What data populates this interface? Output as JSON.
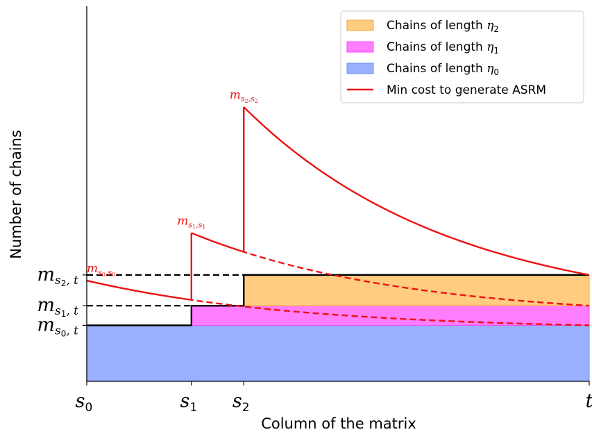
{
  "chart_data": {
    "type": "area",
    "title": "",
    "xlabel": "Column of the matrix",
    "ylabel": "Number of chains",
    "x_ticks": [
      {
        "id": "s0",
        "base": "s",
        "sub": "0",
        "x": 0
      },
      {
        "id": "s1",
        "base": "s",
        "sub": "1",
        "x": 1
      },
      {
        "id": "s2",
        "base": "s",
        "sub": "2",
        "x": 1.5
      },
      {
        "id": "t",
        "base": "t",
        "sub": "",
        "x": 4.8
      }
    ],
    "y_ticks": [
      {
        "id": "ms0t",
        "base": "m",
        "sub": "s",
        "subsub": "0",
        "tail": ", t",
        "y": 1.0
      },
      {
        "id": "ms1t",
        "base": "m",
        "sub": "s",
        "subsub": "1",
        "tail": ", t",
        "y": 1.35
      },
      {
        "id": "ms2t",
        "base": "m",
        "sub": "s",
        "subsub": "2",
        "tail": ", t",
        "y": 1.9
      }
    ],
    "xlim": [
      0,
      4.8
    ],
    "ylim": [
      0,
      6.7
    ],
    "areas": [
      {
        "name": "Chains of length η0",
        "label_text": "Chains of length ",
        "label_math": "η",
        "label_sub": "0",
        "color": "#99b0ff",
        "edge": "#6b8cf0",
        "from_x": 0,
        "to_x": 4.8,
        "y_low": 0,
        "y_high": 1.0
      },
      {
        "name": "Chains of length η1",
        "label_text": "Chains of length ",
        "label_math": "η",
        "label_sub": "1",
        "color": "#ff7dff",
        "edge": "#ff44ff",
        "from_x": 1,
        "to_x": 4.8,
        "y_low": 1.0,
        "y_high": 1.35
      },
      {
        "name": "Chains of length η2",
        "label_text": "Chains of length ",
        "label_math": "η",
        "label_sub": "2",
        "color": "#ffcc80",
        "edge": "#f5a540",
        "from_x": 1.5,
        "to_x": 4.8,
        "y_low": 1.35,
        "y_high": 1.9
      }
    ],
    "red_series": {
      "name": "Min cost to generate ASRM",
      "color": "#ee1111",
      "decay_rate": 0.5,
      "curves": [
        {
          "start_x": 0,
          "peak_y": 1.8,
          "end_y": 1.0,
          "solid_to_x": 1.0
        },
        {
          "start_x": 1.0,
          "peak_y": 2.65,
          "end_y": 1.35,
          "solid_to_x": 1.5
        },
        {
          "start_x": 1.5,
          "peak_y": 4.9,
          "end_y": 1.9,
          "solid_to_x": 4.8
        }
      ]
    },
    "dashed_levels": [
      {
        "y": 1.9,
        "from_x": 0,
        "to_x": 1.5
      },
      {
        "y": 1.35,
        "from_x": 0,
        "to_x": 1.5
      }
    ],
    "annotations": [
      {
        "id": "ann-ms0s0",
        "base": "m",
        "sub1": "s",
        "sub1sub": "0",
        "sub2": "s",
        "sub2sub": "0",
        "x": 0,
        "y": 1.8
      },
      {
        "id": "ann-ms1s1",
        "base": "m",
        "sub1": "s",
        "sub1sub": "1",
        "sub2": "s",
        "sub2sub": "1",
        "x": 1.0,
        "y": 2.65
      },
      {
        "id": "ann-ms2s2",
        "base": "m",
        "sub1": "s",
        "sub1sub": "2",
        "sub2": "s",
        "sub2sub": "2",
        "x": 1.5,
        "y": 4.9
      }
    ],
    "legend": {
      "placement": "top-right",
      "order": [
        "Chains of length η2",
        "Chains of length η1",
        "Chains of length η0",
        "Min cost to generate ASRM"
      ]
    }
  }
}
